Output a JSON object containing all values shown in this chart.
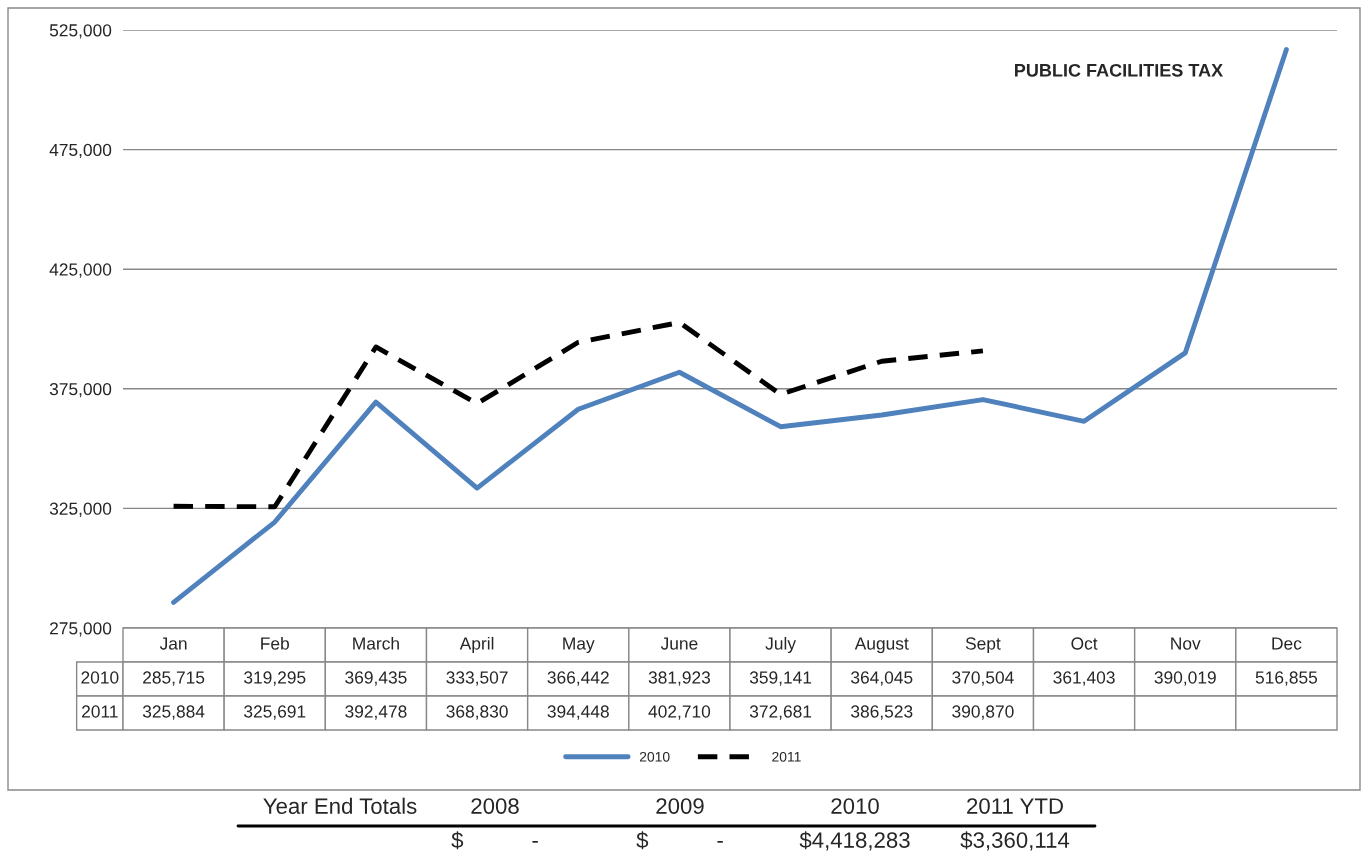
{
  "chart_data": {
    "type": "line",
    "title": "PUBLIC FACILITIES TAX",
    "categories": [
      "Jan",
      "Feb",
      "March",
      "April",
      "May",
      "June",
      "July",
      "August",
      "Sept",
      "Oct",
      "Nov",
      "Dec"
    ],
    "series": [
      {
        "name": "2010",
        "color": "#4f81bd",
        "line_style": "solid",
        "values": [
          285715,
          319295,
          369435,
          333507,
          366442,
          381923,
          359141,
          364045,
          370504,
          361403,
          390019,
          516855
        ],
        "value_labels": [
          "285,715",
          "319,295",
          "369,435",
          "333,507",
          "366,442",
          "381,923",
          "359,141",
          "364,045",
          "370,504",
          "361,403",
          "390,019",
          "516,855"
        ]
      },
      {
        "name": "2011",
        "color": "#000000",
        "line_style": "dashed",
        "values": [
          325884,
          325691,
          392478,
          368830,
          394448,
          402710,
          372681,
          386523,
          390870,
          null,
          null,
          null
        ],
        "value_labels": [
          "325,884",
          "325,691",
          "392,478",
          "368,830",
          "394,448",
          "402,710",
          "372,681",
          "386,523",
          "390,870",
          null,
          null,
          null
        ]
      }
    ],
    "ylim": [
      275000,
      525000
    ],
    "yticks": [
      {
        "value": 275000,
        "label": "275,000"
      },
      {
        "value": 325000,
        "label": "325,000"
      },
      {
        "value": 375000,
        "label": "375,000"
      },
      {
        "value": 425000,
        "label": "425,000"
      },
      {
        "value": 475000,
        "label": "475,000"
      },
      {
        "value": 525000,
        "label": "525,000"
      }
    ],
    "grid": "y",
    "legend": "bottom",
    "marker": "none",
    "annotations": [
      "Year End Totals",
      "2008",
      "2009",
      "2010",
      "2011 YTD",
      "$           -",
      "$           -",
      "$4,418,283",
      "$3,360,114"
    ]
  }
}
